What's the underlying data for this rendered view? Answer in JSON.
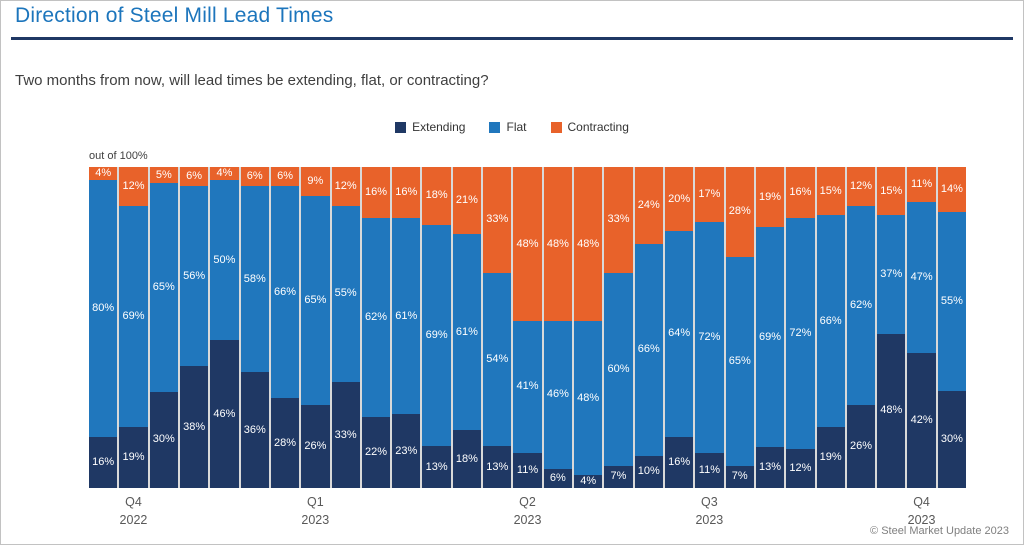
{
  "page": {
    "title": "Direction of Steel Mill Lead Times",
    "subtitle": "Two months from now, will lead times be extending, flat, or contracting?",
    "axis_note": "out of 100%",
    "footer": "© Steel Market Update 2023"
  },
  "colors": {
    "title_text": "#1c75bc",
    "title_rule": "#1f3864",
    "extending": "#1f3864",
    "flat": "#2077bd",
    "contracting": "#e8622a",
    "plot_gap_background": "#d9d9d9"
  },
  "chart_data": {
    "type": "bar",
    "stacked": true,
    "title": "Direction of Steel Mill Lead Times",
    "subtitle": "Two months from now, will lead times be extending, flat, or contracting?",
    "ylabel": "out of 100%",
    "ylim": [
      0,
      100
    ],
    "legend_position": "top-center",
    "grid": false,
    "value_labels": "percent-inside-segments",
    "series": [
      {
        "name": "Extending",
        "color": "#1f3864",
        "values": [
          16,
          19,
          30,
          38,
          46,
          36,
          28,
          26,
          33,
          22,
          23,
          13,
          18,
          13,
          11,
          6,
          4,
          7,
          10,
          16,
          11,
          7,
          13,
          12,
          19,
          26,
          48,
          42,
          30
        ]
      },
      {
        "name": "Flat",
        "color": "#2077bd",
        "values": [
          80,
          69,
          65,
          56,
          50,
          58,
          66,
          65,
          55,
          62,
          61,
          69,
          61,
          54,
          41,
          46,
          48,
          60,
          66,
          64,
          72,
          65,
          69,
          72,
          66,
          62,
          37,
          47,
          55
        ]
      },
      {
        "name": "Contracting",
        "color": "#e8622a",
        "values": [
          4,
          12,
          5,
          6,
          4,
          6,
          6,
          9,
          12,
          16,
          16,
          18,
          21,
          33,
          48,
          48,
          48,
          33,
          24,
          20,
          17,
          28,
          19,
          16,
          15,
          12,
          15,
          11,
          14
        ]
      }
    ],
    "x_ticks": [
      {
        "index": 1,
        "quarter": "Q4",
        "year": "2022"
      },
      {
        "index": 7,
        "quarter": "Q1",
        "year": "2023"
      },
      {
        "index": 14,
        "quarter": "Q2",
        "year": "2023"
      },
      {
        "index": 20,
        "quarter": "Q3",
        "year": "2023"
      },
      {
        "index": 27,
        "quarter": "Q4",
        "year": "2023"
      }
    ]
  }
}
